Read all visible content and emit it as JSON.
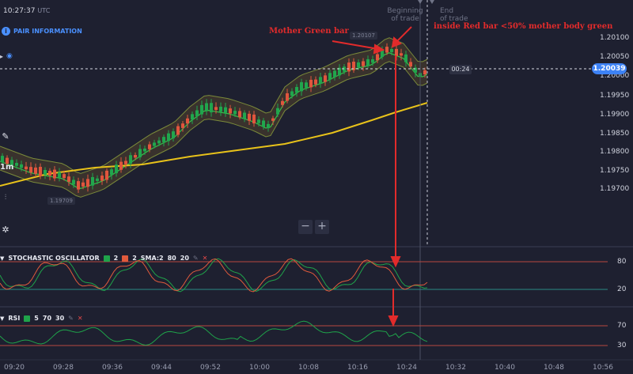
{
  "header": {
    "time": "10:27:37",
    "timezone": "UTC",
    "pair_info": "PAIR INFORMATION"
  },
  "chart": {
    "timeframe": "1m",
    "current_price": "1.20039",
    "countdown": "00:24",
    "high_label": "1.20107",
    "low_label": "1.19709",
    "price_axis": [
      "1.20100",
      "1.20050",
      "1.20000",
      "1.19950",
      "1.19900",
      "1.19850",
      "1.19800",
      "1.19750",
      "1.19700"
    ],
    "time_axis": [
      "09:20",
      "09:28",
      "09:36",
      "09:44",
      "09:52",
      "10:00",
      "10:08",
      "10:16",
      "10:24",
      "10:32",
      "10:40",
      "10:48",
      "10:56"
    ],
    "trade_start": "Beginning\nof trade",
    "trade_end": "End\nof trade",
    "zoom_out": "−",
    "zoom_in": "+"
  },
  "annotations": {
    "mother": "Mother Green bar",
    "inside": "inside Red bar <50% mother body green"
  },
  "stochastic": {
    "name": "STOCHASTIC OSCILLATOR",
    "k": "2",
    "d": "2",
    "sma": "SMA:2",
    "upper": "80",
    "lower": "20",
    "levels": [
      "80",
      "20"
    ],
    "colors": {
      "k": "#1fa34a",
      "d": "#e05a3c"
    }
  },
  "rsi": {
    "name": "RSI",
    "period": "5",
    "upper": "70",
    "lower": "30",
    "levels": [
      "70",
      "30"
    ]
  }
}
